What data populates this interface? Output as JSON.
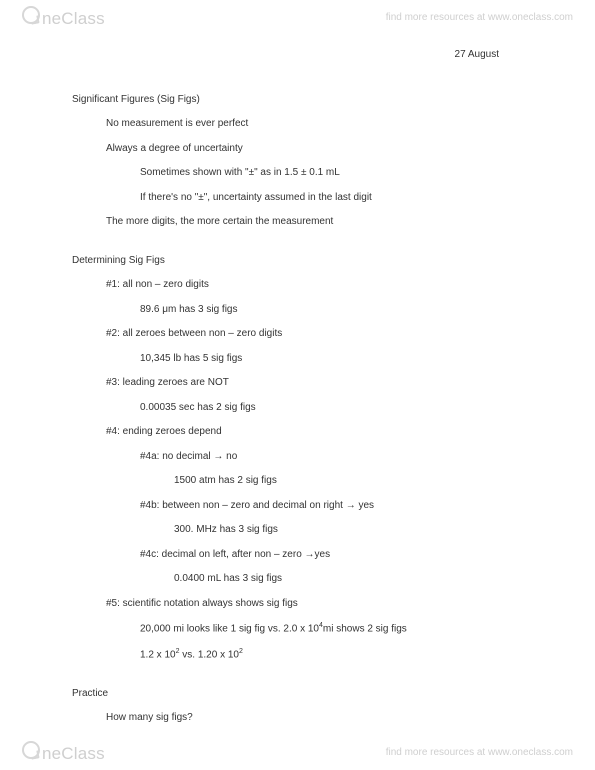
{
  "brand": {
    "name": "neClass",
    "tagline": "find more resources at www.oneclass.com"
  },
  "date": "27 August",
  "doc": {
    "s1": {
      "title": "Significant Figures (Sig Figs)",
      "l1": "No measurement is ever perfect",
      "l2": "Always a degree of uncertainty",
      "l2a": "Sometimes shown with \"±\" as in 1.5 ± 0.1 mL",
      "l2b": "If there's no \"±\", uncertainty assumed in the last digit",
      "l3": "The more digits, the more certain the measurement"
    },
    "s2": {
      "title": "Determining Sig Figs",
      "r1": "#1: all non – zero digits",
      "r1e": "89.6 μm has 3 sig figs",
      "r2": "#2: all zeroes between non – zero digits",
      "r2e": "10,345 lb has 5 sig figs",
      "r3": "#3: leading zeroes are NOT",
      "r3e": "0.00035 sec has 2 sig figs",
      "r4": "#4: ending zeroes depend",
      "r4a": "#4a: no decimal → no",
      "r4ae": "1500 atm has 2 sig figs",
      "r4b": "#4b: between non – zero and decimal on right → yes",
      "r4be": "300. MHz has 3 sig figs",
      "r4c": "#4c: decimal on left, after non – zero →yes",
      "r4ce": "0.0400 mL has 3 sig figs",
      "r5": "#5: scientific notation always shows sig figs",
      "r5e1a": "20,000 mi looks like 1 sig fig vs. 2.0 x 10",
      "r5e1b": "mi shows 2 sig figs",
      "r5e2a": "1.2 x 10",
      "r5e2b": " vs. 1.20 x 10"
    },
    "s3": {
      "title": "Practice",
      "q": "How many sig figs?"
    }
  },
  "sup": {
    "four": "4",
    "two": "2"
  },
  "colors": {
    "text": "#333333",
    "watermark": "#cfcfcf",
    "bg": "#ffffff"
  }
}
